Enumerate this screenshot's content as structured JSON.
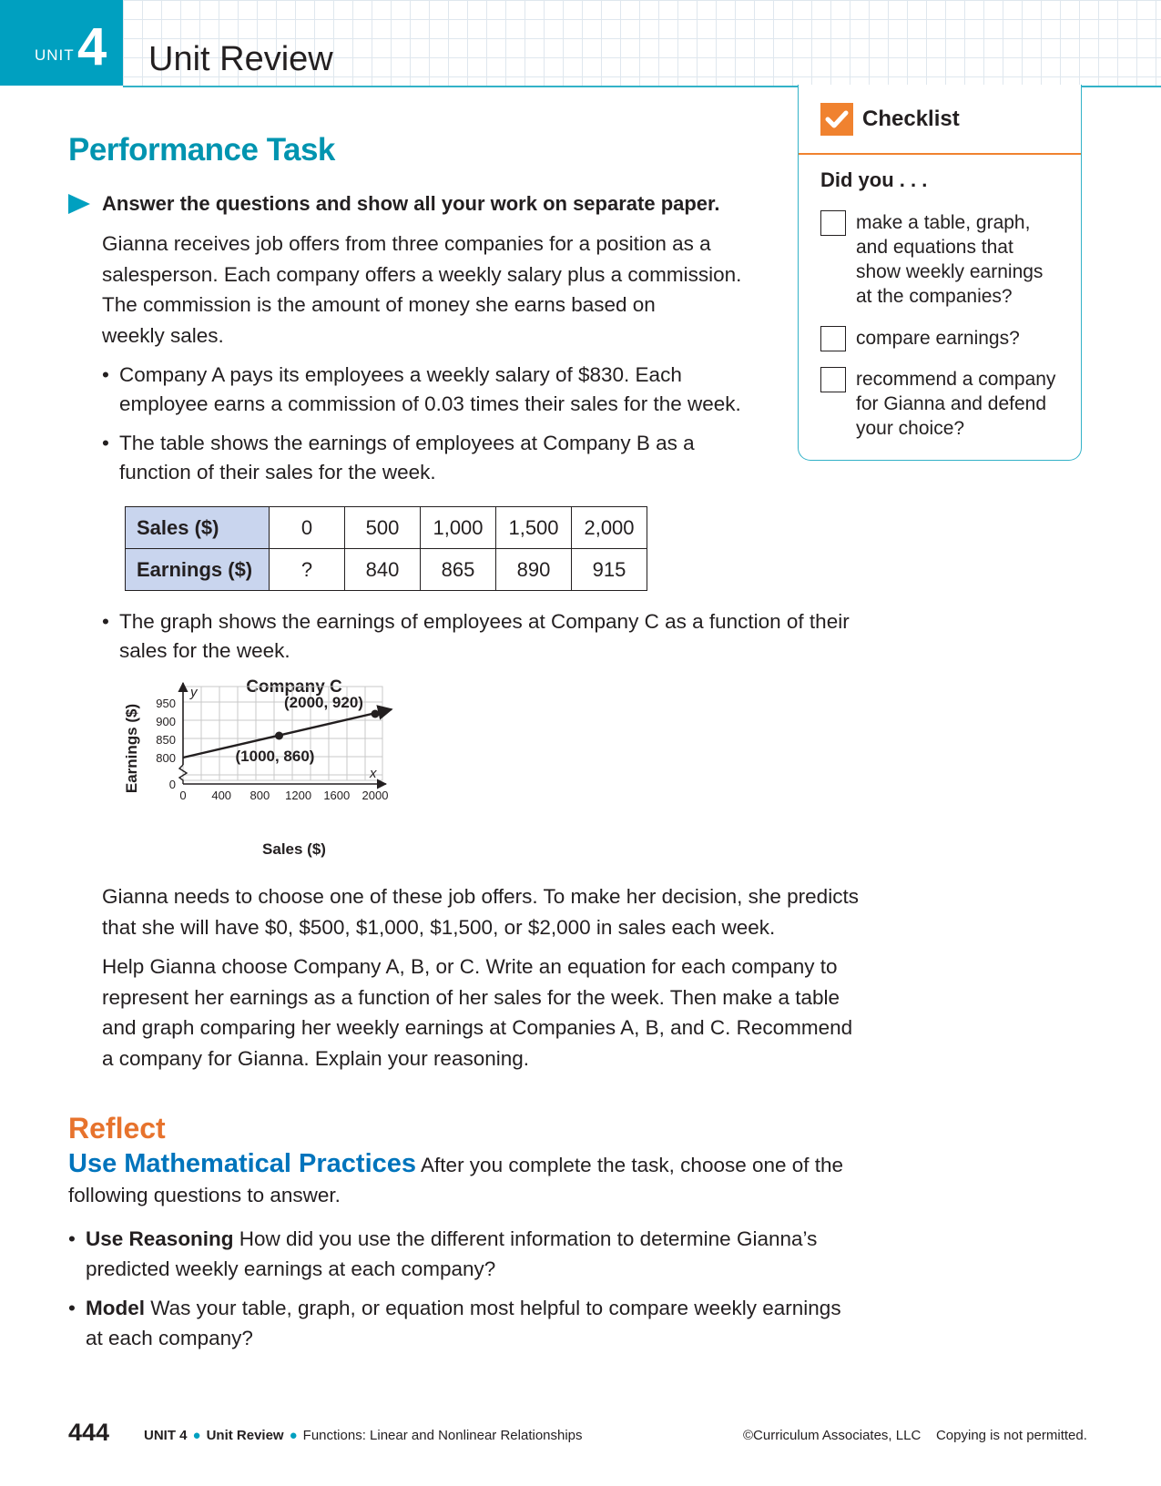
{
  "header": {
    "unit_word": "UNIT",
    "unit_number": "4",
    "title": "Unit Review"
  },
  "task": {
    "title": "Performance Task",
    "instruction": "Answer the questions and show all your work on separate paper.",
    "intro_lines": [
      "Gianna receives job offers from three companies for a position as a",
      "salesperson. Each company offers a weekly salary plus a commission.",
      "The commission is the amount of money she earns based on",
      "weekly sales."
    ],
    "bullet_a": [
      "Company A pays its employees a weekly salary of $830. Each",
      "employee earns a commission of 0.03 times their sales for the week."
    ],
    "bullet_b": [
      "The table shows the earnings of employees at Company B as a",
      "function of their sales for the week."
    ],
    "bullet_c": [
      "The graph shows the earnings of employees at Company C  as a function of their",
      "sales for the week."
    ],
    "closing1": [
      "Gianna needs to choose one of these job offers. To make her decision, she predicts",
      "that she will have $0, $500, $1,000, $1,500, or $2,000 in sales each week."
    ],
    "closing2": [
      "Help Gianna choose Company A, B, or C. Write an equation for each company to",
      "represent her earnings as a function of her sales for the week. Then make a table",
      "and graph comparing her weekly earnings at Companies A, B, and C. Recommend",
      "a company for Gianna. Explain your reasoning."
    ]
  },
  "table_b": {
    "row1_label": "Sales ($)",
    "row2_label": "Earnings ($)",
    "sales": [
      "0",
      "500",
      "1,000",
      "1,500",
      "2,000"
    ],
    "earnings": [
      "?",
      "840",
      "865",
      "890",
      "915"
    ]
  },
  "checklist": {
    "title": "Checklist",
    "prompt": "Did you . . .",
    "items": [
      [
        "make a table, graph,",
        "and equations that",
        "show weekly earnings",
        "at the companies?"
      ],
      [
        "compare earnings?"
      ],
      [
        "recommend a company",
        "for Gianna and defend",
        "your choice?"
      ]
    ]
  },
  "chart_data": {
    "type": "line",
    "title": "Company C",
    "xlabel": "Sales ($)",
    "ylabel": "Earnings ($)",
    "x_axis_letter": "x",
    "y_axis_letter": "y",
    "xlim": [
      0,
      2000
    ],
    "ylim_labels": [
      "0",
      "800",
      "850",
      "900",
      "950"
    ],
    "x_ticks": [
      "0",
      "400",
      "800",
      "1200",
      "1600",
      "2000"
    ],
    "y_ticks": [
      800,
      850,
      900,
      950
    ],
    "grid": true,
    "line": {
      "x": [
        0,
        2000
      ],
      "y": [
        800,
        920
      ]
    },
    "points": [
      {
        "x": 1000,
        "y": 860,
        "label": "(1000, 860)"
      },
      {
        "x": 2000,
        "y": 920,
        "label": "(2000, 920)"
      }
    ]
  },
  "reflect": {
    "title": "Reflect",
    "practices_label": "Use Mathematical Practices",
    "practices_line1": " After you complete the task, choose one of the",
    "practices_line2": "following questions to answer.",
    "q1_label": "Use Reasoning",
    "q1_line1": "  How did you use the different information to determine Gianna’s",
    "q1_line2": "predicted weekly earnings at each company?",
    "q2_label": "Model",
    "q2_line1": "  Was your table, graph, or equation most helpful to compare weekly earnings",
    "q2_line2": "at each company?"
  },
  "footer": {
    "page_number": "444",
    "unit": "UNIT 4",
    "section": "Unit Review",
    "topic": "Functions: Linear and Nonlinear Relationships",
    "copyright": "©Curriculum Associates, LLC",
    "notice": "Copying is not permitted."
  },
  "colors": {
    "teal": "#00a0c0",
    "orange": "#f0822f",
    "blue": "#0074bc",
    "table_header": "#c9d5ee"
  }
}
